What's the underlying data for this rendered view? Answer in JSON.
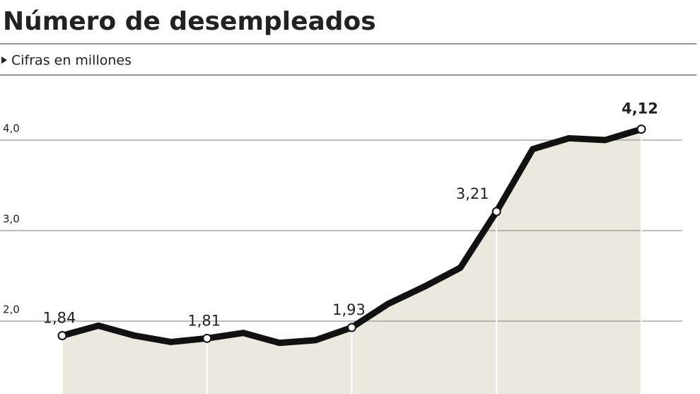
{
  "chart_data": {
    "type": "line",
    "title": "Número de desempleados",
    "subtitle": "Cifras en millones",
    "values": [
      1.84,
      1.95,
      1.84,
      1.77,
      1.81,
      1.87,
      1.76,
      1.79,
      1.93,
      2.19,
      2.38,
      2.59,
      3.21,
      3.9,
      4.02,
      4.0,
      4.12
    ],
    "value_labels": [
      "1,84",
      null,
      null,
      null,
      "1,81",
      null,
      null,
      null,
      "1,93",
      null,
      null,
      null,
      "3,21",
      null,
      null,
      null,
      "4,12"
    ],
    "color": "#111111",
    "area_color": "#ebe8de",
    "ylim": [
      1.2,
      4.7
    ],
    "yticks": [
      {
        "value": 2,
        "label": "2,0"
      },
      {
        "value": 3,
        "label": "3,0"
      },
      {
        "value": 4,
        "label": "4,0"
      }
    ],
    "grid": true
  }
}
